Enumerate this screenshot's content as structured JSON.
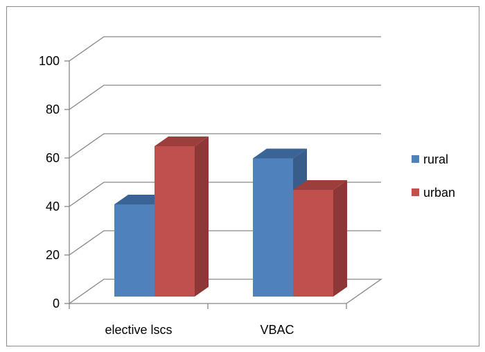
{
  "chart_data": {
    "type": "bar",
    "style": "3d-clustered-column",
    "categories": [
      "elective lscs",
      "VBAC"
    ],
    "series": [
      {
        "name": "rural",
        "values": [
          38,
          57
        ],
        "color": "#4f81bd",
        "side_color": "#385d8a",
        "top_color": "#3a6496"
      },
      {
        "name": "urban",
        "values": [
          62,
          44
        ],
        "color": "#c0504d",
        "side_color": "#8c3836",
        "top_color": "#9c3f3c"
      }
    ],
    "y_ticks": [
      "0",
      "20",
      "40",
      "60",
      "80",
      "100"
    ],
    "ylim": [
      0,
      100
    ],
    "grid": true,
    "legend_position": "right"
  }
}
